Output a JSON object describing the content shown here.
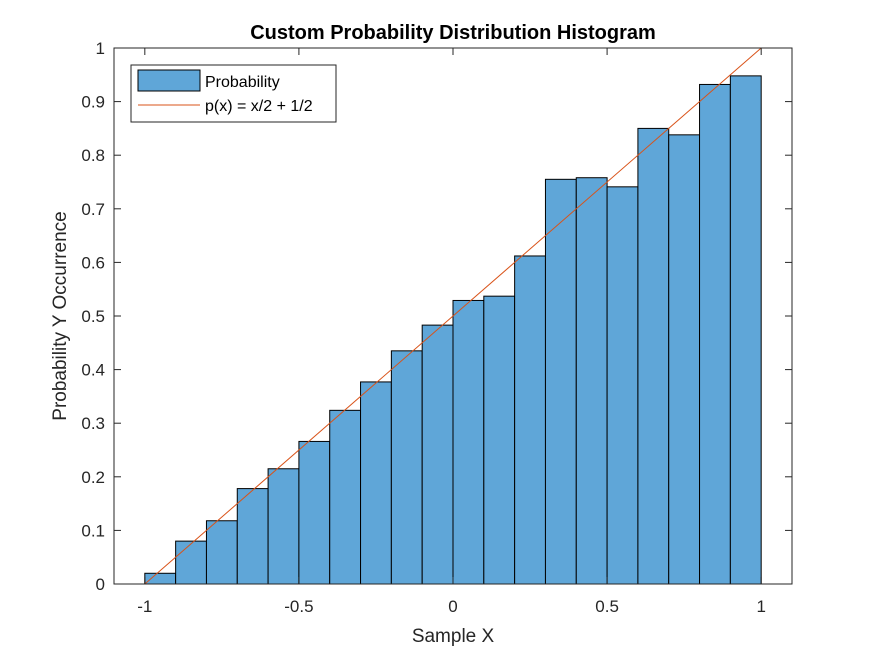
{
  "chart_data": {
    "type": "bar",
    "title": "Custom Probability Distribution Histogram",
    "xlabel": "Sample X",
    "ylabel": "Probability Y Occurrence",
    "xlim": [
      -1.1,
      1.1
    ],
    "ylim": [
      0,
      1
    ],
    "xticks": [
      -1,
      -0.5,
      0,
      0.5,
      1
    ],
    "xtick_labels": [
      "-1",
      "-0.5",
      "0",
      "0.5",
      "1"
    ],
    "yticks": [
      0,
      0.1,
      0.2,
      0.3,
      0.4,
      0.5,
      0.6,
      0.7,
      0.8,
      0.9,
      1
    ],
    "ytick_labels": [
      "0",
      "0.1",
      "0.2",
      "0.3",
      "0.4",
      "0.5",
      "0.6",
      "0.7",
      "0.8",
      "0.9",
      "1"
    ],
    "grid": false,
    "legend_position": "top-left",
    "bin_edges": [
      -1,
      -0.9,
      -0.8,
      -0.7,
      -0.6,
      -0.5,
      -0.4,
      -0.3,
      -0.2,
      -0.1,
      0,
      0.1,
      0.2,
      0.3,
      0.4,
      0.5,
      0.6,
      0.7,
      0.8,
      0.9,
      1
    ],
    "series": [
      {
        "name": "Probability",
        "kind": "histogram",
        "color": "#5fa6d8",
        "edge_color": "#000000",
        "values": [
          0.02,
          0.08,
          0.118,
          0.178,
          0.215,
          0.266,
          0.324,
          0.377,
          0.435,
          0.483,
          0.529,
          0.537,
          0.612,
          0.755,
          0.758,
          0.741,
          0.85,
          0.838,
          0.932,
          0.948
        ]
      },
      {
        "name": "p(x) = x/2 + 1/2",
        "kind": "line",
        "color": "#d95319",
        "x": [
          -1,
          1
        ],
        "y": [
          0,
          1
        ]
      }
    ]
  }
}
